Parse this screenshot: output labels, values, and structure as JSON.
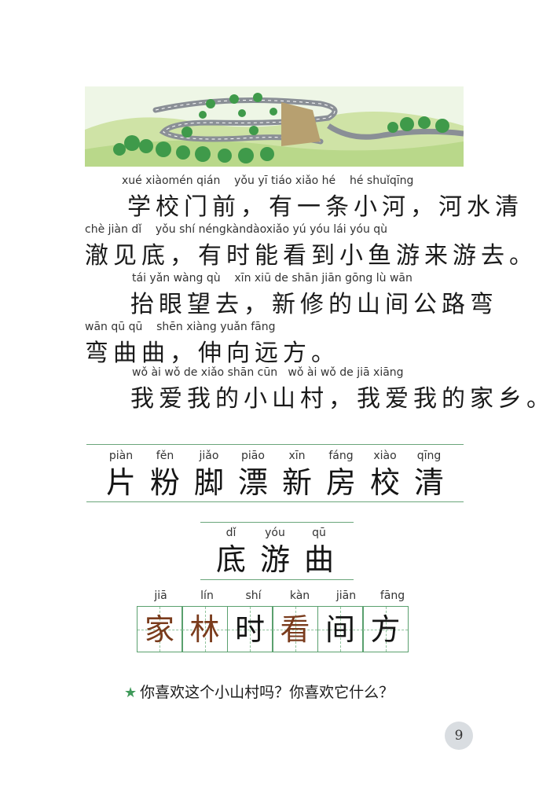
{
  "passage": [
    {
      "pinyin": "xué xiàomén qián    yǒu yī tiáo xiǎo hé    hé shuǐqīng",
      "hanzi": "学校门前，有一条小河，河水清"
    },
    {
      "pinyin": "chè jiàn dǐ    yǒu shí néngkàndàoxiǎo yú yóu lái yóu qù",
      "hanzi": "澈见底，有时能看到小鱼游来游去。"
    },
    {
      "pinyin": "tái yǎn wàng qù    xīn xiū de shān jiān gōng lù wān",
      "hanzi": "抬眼望去，新修的山间公路弯"
    },
    {
      "pinyin": "wān qū qū    shēn xiàng yuǎn fāng",
      "hanzi": "弯曲曲，伸向远方。"
    },
    {
      "pinyin": "wǒ ài wǒ de xiǎo shān cūn   wǒ ài wǒ de jiā xiāng",
      "hanzi": "我爱我的小山村，我爱我的家乡。"
    }
  ],
  "vocab_row1": [
    {
      "py": "piàn",
      "ch": "片"
    },
    {
      "py": "fěn",
      "ch": "粉"
    },
    {
      "py": "jiǎo",
      "ch": "脚"
    },
    {
      "py": "piāo",
      "ch": "漂"
    },
    {
      "py": "xīn",
      "ch": "新"
    },
    {
      "py": "fáng",
      "ch": "房"
    },
    {
      "py": "xiào",
      "ch": "校"
    },
    {
      "py": "qīng",
      "ch": "清"
    }
  ],
  "vocab_row2": [
    {
      "py": "dǐ",
      "ch": "底"
    },
    {
      "py": "yóu",
      "ch": "游"
    },
    {
      "py": "qū",
      "ch": "曲"
    }
  ],
  "writing_grid": [
    {
      "py": "jiā",
      "ch": "家",
      "color": "#7a3b1c"
    },
    {
      "py": "lín",
      "ch": "林",
      "color": "#7a3b1c"
    },
    {
      "py": "shí",
      "ch": "时",
      "color": "#151515"
    },
    {
      "py": "kàn",
      "ch": "看",
      "color": "#7a3b1c"
    },
    {
      "py": "jiān",
      "ch": "间",
      "color": "#151515"
    },
    {
      "py": "fāng",
      "ch": "方",
      "color": "#151515"
    }
  ],
  "question": "你喜欢这个小山村吗？你喜欢它什么？",
  "page_number": "9",
  "colors": {
    "accent_green": "#5aa06e",
    "star": "#3f9a5a",
    "brown_char": "#7a3b1c"
  }
}
